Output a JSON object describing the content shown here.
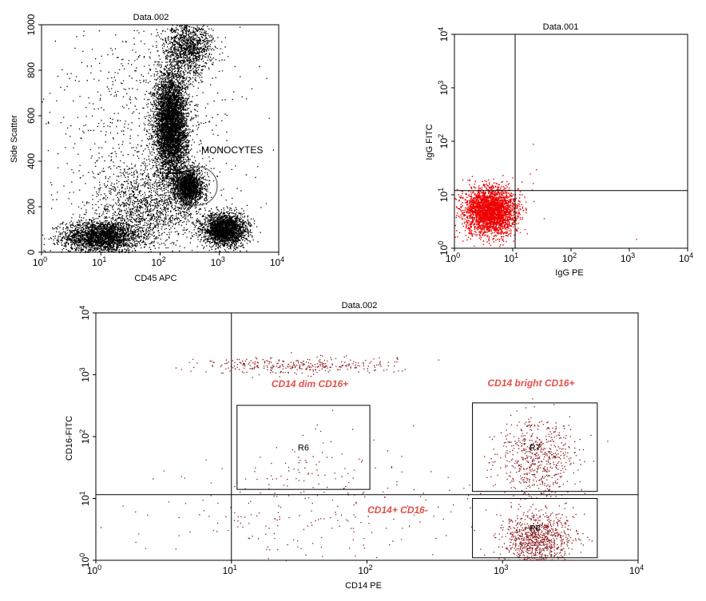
{
  "chart_data": [
    {
      "type": "scatter",
      "title": "Data.002",
      "xlabel": "CD45 APC",
      "ylabel": "Side Scatter",
      "x_scale": "log",
      "xlim": [
        1,
        10000
      ],
      "ylim": [
        0,
        1000
      ],
      "x_ticks": [
        {
          "value": 1,
          "base": "10",
          "exp": "0"
        },
        {
          "value": 10,
          "base": "10",
          "exp": "1"
        },
        {
          "value": 100,
          "base": "10",
          "exp": "2"
        },
        {
          "value": 1000,
          "base": "10",
          "exp": "3"
        },
        {
          "value": 10000,
          "base": "10",
          "exp": "4"
        }
      ],
      "y_ticks": [
        0,
        200,
        400,
        600,
        800,
        1000
      ],
      "point_color": "#000000",
      "grid": false,
      "annotations": [
        {
          "text": "MONOCYTES"
        }
      ],
      "gates": [
        {
          "shape": "ellipse",
          "cx": 300,
          "cy": 290,
          "note": "monocyte gate"
        }
      ],
      "populations": [
        {
          "name": "lymphocyte-like low CD45",
          "cx": 10,
          "cy": 70,
          "sx_log": 0.32,
          "sy": 35,
          "n": 2600
        },
        {
          "name": "granulocytes",
          "cx": 150,
          "cy": 560,
          "sx_log": 0.14,
          "sy": 120,
          "n": 5000
        },
        {
          "name": "granulocyte streak",
          "cx": 300,
          "cy": 900,
          "sx_log": 0.2,
          "sy": 60,
          "n": 1200
        },
        {
          "name": "monocytes",
          "cx": 300,
          "cy": 290,
          "sx_log": 0.12,
          "sy": 40,
          "n": 1800
        },
        {
          "name": "lymphocytes",
          "cx": 1200,
          "cy": 100,
          "sx_log": 0.18,
          "sy": 35,
          "n": 2600
        },
        {
          "name": "debris band",
          "cx": 60,
          "cy": 200,
          "sx_log": 0.45,
          "sy": 80,
          "n": 1200
        },
        {
          "name": "background",
          "cx": 60,
          "cy": 500,
          "sx_log": 0.8,
          "sy": 300,
          "n": 900
        }
      ]
    },
    {
      "type": "scatter",
      "title": "Data.001",
      "xlabel": "IgG PE",
      "ylabel": "IgG FITC",
      "x_scale": "log",
      "y_scale": "log",
      "xlim": [
        1,
        10000
      ],
      "ylim": [
        1,
        10000
      ],
      "x_ticks": [
        {
          "value": 1,
          "base": "10",
          "exp": "0"
        },
        {
          "value": 10,
          "base": "10",
          "exp": "1"
        },
        {
          "value": 100,
          "base": "10",
          "exp": "2"
        },
        {
          "value": 1000,
          "base": "10",
          "exp": "3"
        },
        {
          "value": 10000,
          "base": "10",
          "exp": "4"
        }
      ],
      "y_ticks": [
        {
          "value": 1,
          "base": "10",
          "exp": "0"
        },
        {
          "value": 10,
          "base": "10",
          "exp": "1"
        },
        {
          "value": 100,
          "base": "10",
          "exp": "2"
        },
        {
          "value": 1000,
          "base": "10",
          "exp": "3"
        },
        {
          "value": 10000,
          "base": "10",
          "exp": "4"
        }
      ],
      "quadrant_lines": {
        "x": 11,
        "y": 12
      },
      "point_color": "#ee0000",
      "grid": false,
      "populations": [
        {
          "name": "isotype control",
          "cx": 4,
          "cy": 5,
          "sx_log": 0.22,
          "sy_log": 0.22,
          "n": 3000
        }
      ],
      "outliers": [
        [
          25,
          30
        ],
        [
          22,
          90
        ],
        [
          1300,
          1.5
        ]
      ]
    },
    {
      "type": "scatter",
      "title": "Data.002",
      "xlabel": "CD14 PE",
      "ylabel": "CD16-FITC",
      "x_scale": "log",
      "y_scale": "log",
      "xlim": [
        1,
        10000
      ],
      "ylim": [
        1,
        10000
      ],
      "x_ticks": [
        {
          "value": 1,
          "base": "10",
          "exp": "0"
        },
        {
          "value": 10,
          "base": "10",
          "exp": "1"
        },
        {
          "value": 100,
          "base": "10",
          "exp": "2"
        },
        {
          "value": 1000,
          "base": "10",
          "exp": "3"
        },
        {
          "value": 10000,
          "base": "10",
          "exp": "4"
        }
      ],
      "y_ticks": [
        {
          "value": 1,
          "base": "10",
          "exp": "0"
        },
        {
          "value": 10,
          "base": "10",
          "exp": "1"
        },
        {
          "value": 100,
          "base": "10",
          "exp": "2"
        },
        {
          "value": 1000,
          "base": "10",
          "exp": "3"
        },
        {
          "value": 10000,
          "base": "10",
          "exp": "4"
        }
      ],
      "quadrant_lines": {
        "x": 10,
        "y": 11.5
      },
      "point_color": "#8b1a1a",
      "grid": false,
      "annotations": [
        {
          "text": "CD14 dim CD16+"
        },
        {
          "text": "CD14 bright CD16+"
        },
        {
          "text": "CD14+ CD16-"
        }
      ],
      "regions": [
        {
          "label": "R6",
          "x": [
            11,
            105
          ],
          "y": [
            14,
            320
          ]
        },
        {
          "label": "R7",
          "x": [
            600,
            5000
          ],
          "y": [
            13,
            350
          ]
        },
        {
          "label": "R8",
          "x": [
            600,
            5000
          ],
          "y": [
            1.1,
            10
          ]
        }
      ],
      "populations": [
        {
          "name": "CD16 bright band",
          "cx": 30,
          "cy": 1400,
          "sx_log": 0.35,
          "sy_log": 0.07,
          "n": 320
        },
        {
          "name": "CD14 bright CD16-",
          "cx": 1800,
          "cy": 2.2,
          "sx_log": 0.13,
          "sy_log": 0.22,
          "n": 900
        },
        {
          "name": "CD14 bright CD16+",
          "cx": 1800,
          "cy": 45,
          "sx_log": 0.14,
          "sy_log": 0.32,
          "n": 600
        },
        {
          "name": "CD14 dim CD16+",
          "cx": 35,
          "cy": 35,
          "sx_log": 0.35,
          "sy_log": 0.3,
          "n": 70
        },
        {
          "name": "scattered background",
          "cx": 40,
          "cy": 6,
          "sx_log": 0.7,
          "sy_log": 0.35,
          "n": 200
        }
      ]
    }
  ]
}
